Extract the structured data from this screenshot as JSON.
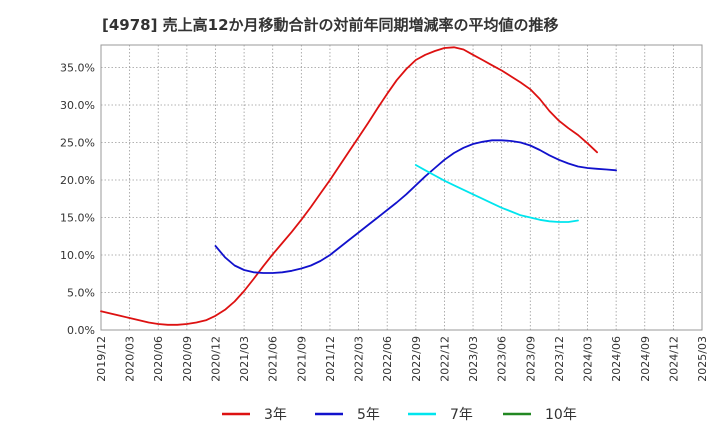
{
  "chart_data": {
    "type": "line",
    "title": "[4978]  売上高12か月移動合計の対前年同期増減率の平均値の推移",
    "xlabel": "",
    "ylabel": "",
    "ylim": [
      0,
      0.38
    ],
    "y_ticks": [
      0,
      0.05,
      0.1,
      0.15,
      0.2,
      0.25,
      0.3,
      0.35
    ],
    "y_tick_labels": [
      "0.0%",
      "5.0%",
      "10.0%",
      "15.0%",
      "20.0%",
      "25.0%",
      "30.0%",
      "35.0%"
    ],
    "x_tick_labels": [
      "2019/12",
      "2020/03",
      "2020/06",
      "2020/09",
      "2020/12",
      "2021/03",
      "2021/06",
      "2021/09",
      "2021/12",
      "2022/03",
      "2022/06",
      "2022/09",
      "2022/12",
      "2023/03",
      "2023/06",
      "2023/09",
      "2023/12",
      "2024/03",
      "2024/06",
      "2024/09",
      "2024/12",
      "2025/03"
    ],
    "grid": true,
    "legend_position": "bottom",
    "series": [
      {
        "name": "3年",
        "color": "#dd1111",
        "start_index": 0,
        "values": [
          0.025,
          0.022,
          0.019,
          0.016,
          0.013,
          0.01,
          0.008,
          0.007,
          0.007,
          0.008,
          0.01,
          0.013,
          0.019,
          0.027,
          0.038,
          0.052,
          0.068,
          0.085,
          0.101,
          0.116,
          0.131,
          0.147,
          0.164,
          0.182,
          0.2,
          0.219,
          0.238,
          0.257,
          0.276,
          0.296,
          0.315,
          0.333,
          0.348,
          0.36,
          0.367,
          0.372,
          0.376,
          0.377,
          0.374,
          0.367,
          0.36,
          0.353,
          0.346,
          0.338,
          0.33,
          0.321,
          0.308,
          0.292,
          0.279,
          0.269,
          0.26,
          0.249,
          0.237
        ]
      },
      {
        "name": "5年",
        "color": "#1111cc",
        "start_index": 12,
        "values": [
          0.112,
          0.097,
          0.086,
          0.08,
          0.077,
          0.076,
          0.076,
          0.077,
          0.079,
          0.082,
          0.086,
          0.092,
          0.1,
          0.11,
          0.12,
          0.13,
          0.14,
          0.15,
          0.16,
          0.17,
          0.181,
          0.193,
          0.205,
          0.216,
          0.227,
          0.236,
          0.243,
          0.248,
          0.251,
          0.253,
          0.253,
          0.252,
          0.25,
          0.246,
          0.24,
          0.233,
          0.227,
          0.222,
          0.218,
          0.216,
          0.215,
          0.214,
          0.213
        ]
      },
      {
        "name": "7年",
        "color": "#00e5ee",
        "start_index": 33,
        "values": [
          0.22,
          0.213,
          0.206,
          0.199,
          0.193,
          0.187,
          0.181,
          0.175,
          0.169,
          0.163,
          0.158,
          0.153,
          0.15,
          0.147,
          0.145,
          0.144,
          0.144,
          0.146
        ]
      },
      {
        "name": "10年",
        "color": "#228822",
        "start_index": 0,
        "values": []
      }
    ]
  }
}
